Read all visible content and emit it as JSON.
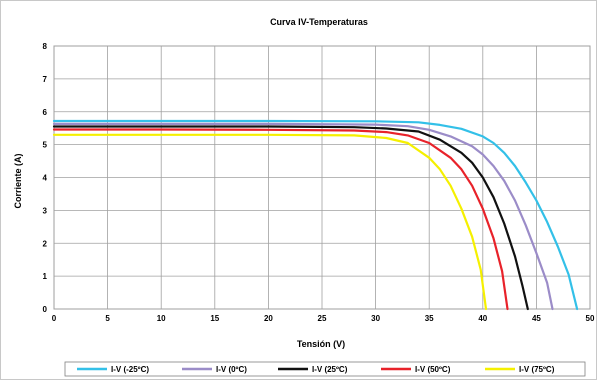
{
  "chart_data": {
    "type": "line",
    "title": "Curva IV-Temperaturas",
    "xlabel": "Tensión (V)",
    "ylabel": "Corriente (A)",
    "xlim": [
      0,
      50
    ],
    "ylim": [
      0,
      8
    ],
    "x_ticks": [
      "0",
      "5",
      "10",
      "15",
      "20",
      "25",
      "30",
      "35",
      "40",
      "45",
      "50"
    ],
    "y_ticks": [
      "0",
      "1",
      "2",
      "3",
      "4",
      "5",
      "6",
      "7",
      "8"
    ],
    "grid": true,
    "legend_position": "bottom",
    "series": [
      {
        "name": "I-V (-25ºC)",
        "color": "#33c0e8",
        "points": [
          [
            0,
            5.72
          ],
          [
            10,
            5.72
          ],
          [
            20,
            5.72
          ],
          [
            30,
            5.71
          ],
          [
            34,
            5.68
          ],
          [
            36,
            5.6
          ],
          [
            38,
            5.48
          ],
          [
            40,
            5.25
          ],
          [
            41,
            5.05
          ],
          [
            42,
            4.75
          ],
          [
            43,
            4.35
          ],
          [
            44,
            3.85
          ],
          [
            45,
            3.3
          ],
          [
            46,
            2.65
          ],
          [
            47,
            1.9
          ],
          [
            48,
            1.05
          ],
          [
            48.8,
            0
          ]
        ]
      },
      {
        "name": "I-V (0ºC)",
        "color": "#9b8cc8",
        "points": [
          [
            0,
            5.63
          ],
          [
            10,
            5.63
          ],
          [
            20,
            5.63
          ],
          [
            30,
            5.61
          ],
          [
            33,
            5.56
          ],
          [
            35,
            5.45
          ],
          [
            37,
            5.25
          ],
          [
            39,
            4.95
          ],
          [
            40,
            4.7
          ],
          [
            41,
            4.35
          ],
          [
            42,
            3.9
          ],
          [
            43,
            3.3
          ],
          [
            44,
            2.55
          ],
          [
            45,
            1.7
          ],
          [
            46,
            0.8
          ],
          [
            46.5,
            0
          ]
        ]
      },
      {
        "name": "I-V (25ºC)",
        "color": "#111111",
        "points": [
          [
            0,
            5.55
          ],
          [
            10,
            5.55
          ],
          [
            20,
            5.55
          ],
          [
            28,
            5.53
          ],
          [
            31,
            5.49
          ],
          [
            34,
            5.4
          ],
          [
            36,
            5.15
          ],
          [
            38,
            4.75
          ],
          [
            39,
            4.45
          ],
          [
            40,
            4.0
          ],
          [
            41,
            3.4
          ],
          [
            42,
            2.6
          ],
          [
            43,
            1.6
          ],
          [
            43.7,
            0.7
          ],
          [
            44.2,
            0
          ]
        ]
      },
      {
        "name": "I-V (50ºC)",
        "color": "#e8222a",
        "points": [
          [
            0,
            5.46
          ],
          [
            10,
            5.46
          ],
          [
            20,
            5.45
          ],
          [
            28,
            5.43
          ],
          [
            31,
            5.38
          ],
          [
            33,
            5.28
          ],
          [
            35,
            5.05
          ],
          [
            37,
            4.6
          ],
          [
            38,
            4.25
          ],
          [
            39,
            3.75
          ],
          [
            40,
            3.05
          ],
          [
            41,
            2.15
          ],
          [
            41.8,
            1.15
          ],
          [
            42.3,
            0
          ]
        ]
      },
      {
        "name": "I-V (75ºC)",
        "color": "#f5f000",
        "points": [
          [
            0,
            5.3
          ],
          [
            10,
            5.3
          ],
          [
            20,
            5.3
          ],
          [
            28,
            5.28
          ],
          [
            31,
            5.2
          ],
          [
            33,
            5.05
          ],
          [
            35,
            4.6
          ],
          [
            36,
            4.25
          ],
          [
            37,
            3.75
          ],
          [
            38,
            3.05
          ],
          [
            39,
            2.2
          ],
          [
            39.8,
            1.2
          ],
          [
            40.3,
            0
          ]
        ]
      }
    ]
  }
}
